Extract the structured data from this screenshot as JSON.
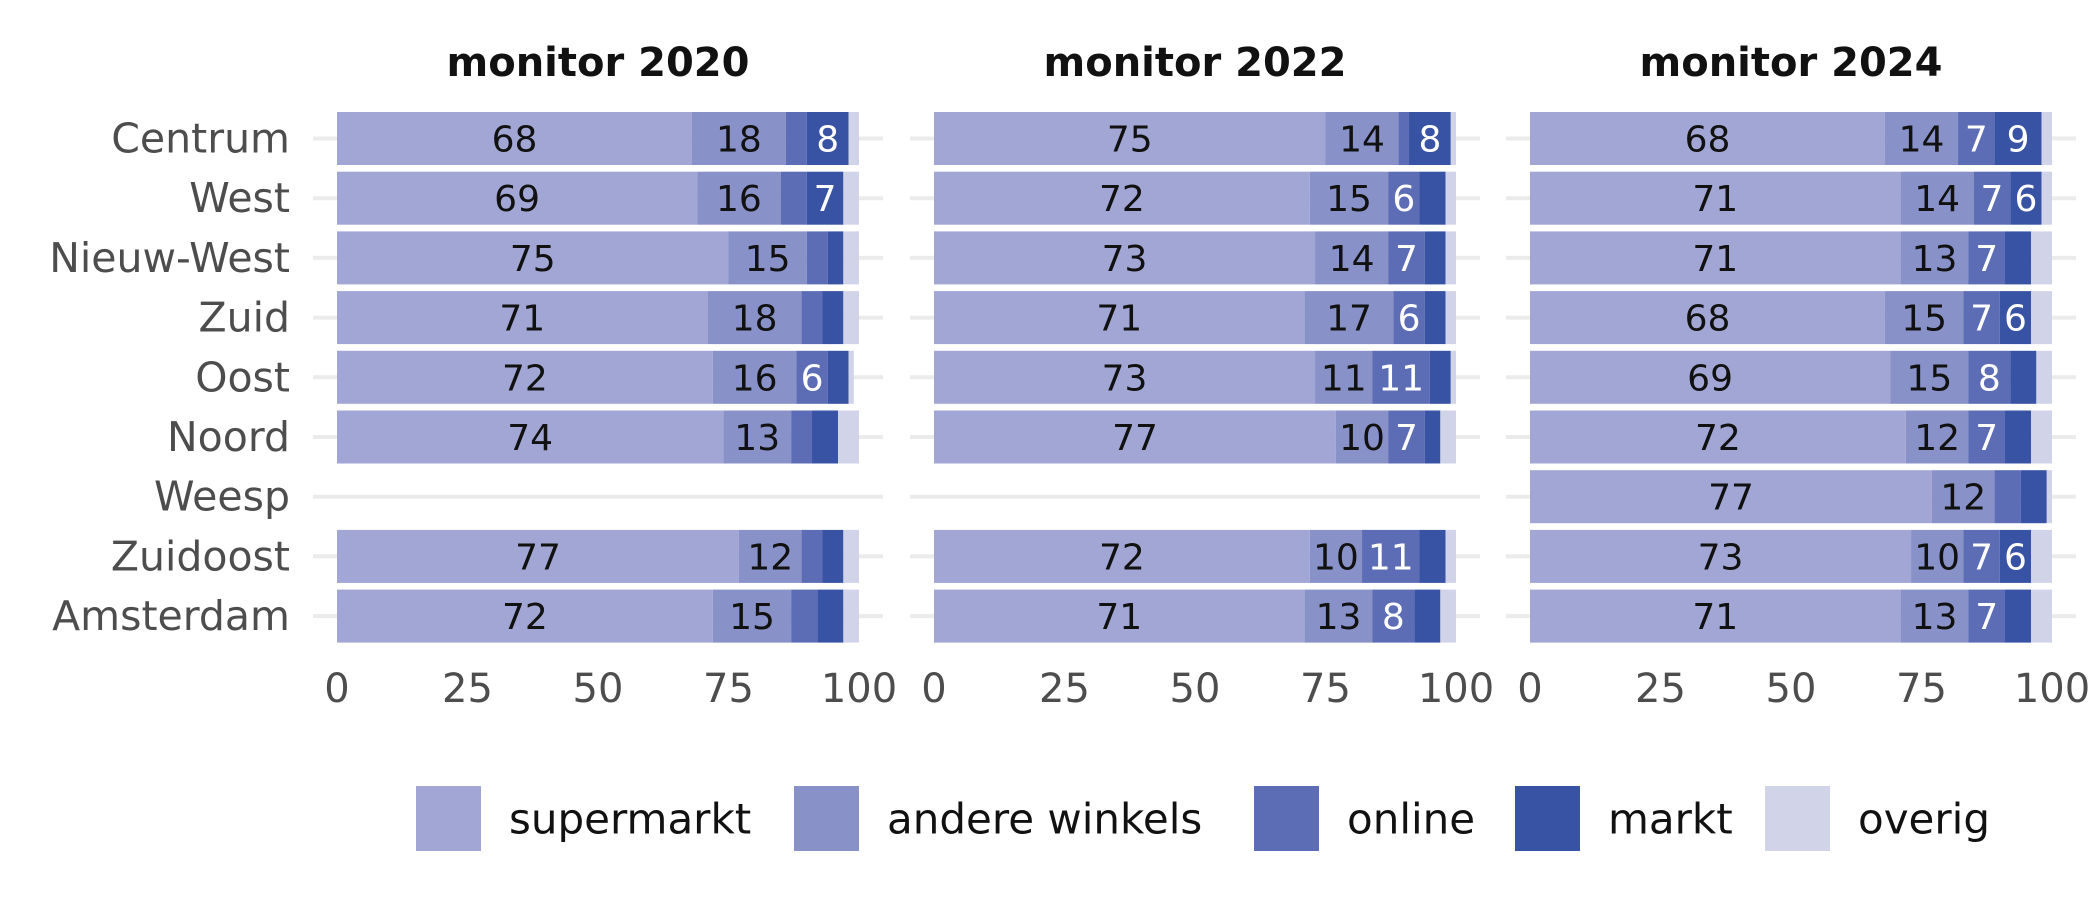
{
  "chart_data": {
    "type": "bar",
    "orientation": "horizontal",
    "stacked": true,
    "xlim": [
      0,
      100
    ],
    "xticks": [
      "0",
      "25",
      "50",
      "75",
      "100"
    ],
    "grid": true,
    "legend_position": "bottom",
    "categories": [
      "Centrum",
      "West",
      "Nieuw-West",
      "Zuid",
      "Oost",
      "Noord",
      "Weesp",
      "Zuidoost",
      "Amsterdam"
    ],
    "series": [
      {
        "name": "supermarkt",
        "color": "#a2a6d4"
      },
      {
        "name": "andere winkels",
        "color": "#8891c8"
      },
      {
        "name": "online",
        "color": "#5c6db5"
      },
      {
        "name": "markt",
        "color": "#3953a4"
      },
      {
        "name": "overig",
        "color": "#d1d3e9"
      }
    ],
    "panels": [
      {
        "title": "monitor 2020",
        "values": [
          [
            68,
            18,
            4,
            8,
            2
          ],
          [
            69,
            16,
            5,
            7,
            3
          ],
          [
            75,
            15,
            4,
            3,
            3
          ],
          [
            71,
            18,
            4,
            4,
            3
          ],
          [
            72,
            16,
            6,
            4,
            1
          ],
          [
            74,
            13,
            4,
            5,
            4
          ],
          null,
          [
            77,
            12,
            4,
            4,
            3
          ],
          [
            72,
            15,
            5,
            5,
            3
          ]
        ]
      },
      {
        "title": "monitor 2022",
        "values": [
          [
            75,
            14,
            2,
            8,
            1
          ],
          [
            72,
            15,
            6,
            5,
            2
          ],
          [
            73,
            14,
            7,
            4,
            2
          ],
          [
            71,
            17,
            6,
            4,
            2
          ],
          [
            73,
            11,
            11,
            4,
            1
          ],
          [
            77,
            10,
            7,
            3,
            3
          ],
          null,
          [
            72,
            10,
            11,
            5,
            2
          ],
          [
            71,
            13,
            8,
            5,
            3
          ]
        ]
      },
      {
        "title": "monitor 2024",
        "values": [
          [
            68,
            14,
            7,
            9,
            2
          ],
          [
            71,
            14,
            7,
            6,
            2
          ],
          [
            71,
            13,
            7,
            5,
            4
          ],
          [
            68,
            15,
            7,
            6,
            4
          ],
          [
            69,
            15,
            8,
            5,
            3
          ],
          [
            72,
            12,
            7,
            5,
            4
          ],
          [
            77,
            12,
            5,
            5,
            1
          ],
          [
            73,
            10,
            7,
            6,
            4
          ],
          [
            71,
            13,
            7,
            5,
            4
          ]
        ]
      }
    ]
  }
}
